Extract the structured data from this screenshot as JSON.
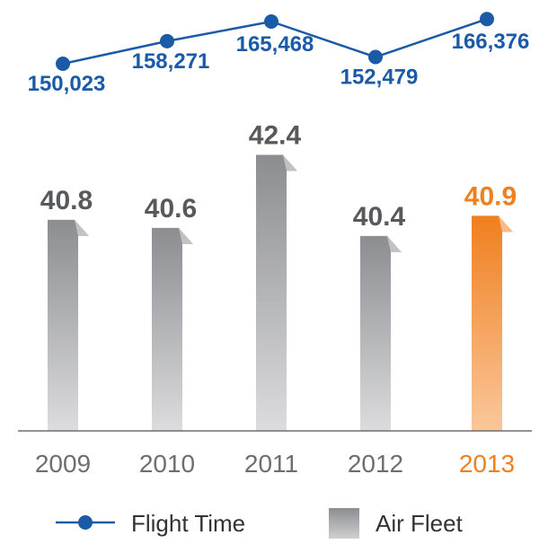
{
  "chart_data": {
    "type": "bar",
    "categories": [
      "2009",
      "2010",
      "2011",
      "2012",
      "2013"
    ],
    "highlight_category": "2013",
    "series": [
      {
        "name": "Air Fleet",
        "kind": "bar",
        "values": [
          40.8,
          40.6,
          42.4,
          40.4,
          40.9
        ],
        "labels": [
          "40.8",
          "40.6",
          "42.4",
          "40.4",
          "40.9"
        ]
      },
      {
        "name": "Flight Time",
        "kind": "line",
        "values": [
          150023,
          158271,
          165468,
          152479,
          166376
        ],
        "labels": [
          "150,023",
          "158,271",
          "165,468",
          "152,479",
          "166,376"
        ]
      }
    ],
    "colors": {
      "line": "#1a5aa6",
      "bar_top": "#8c8d91",
      "bar_bottom": "#dcdcde",
      "highlight_top": "#f07f1e",
      "highlight_bottom": "#fac79a",
      "label": "#58595b",
      "highlight_label": "#f07f1e",
      "axis": "#6d6e71"
    },
    "grid": false
  },
  "legend": {
    "flight_time": "Flight Time",
    "air_fleet": "Air Fleet"
  }
}
